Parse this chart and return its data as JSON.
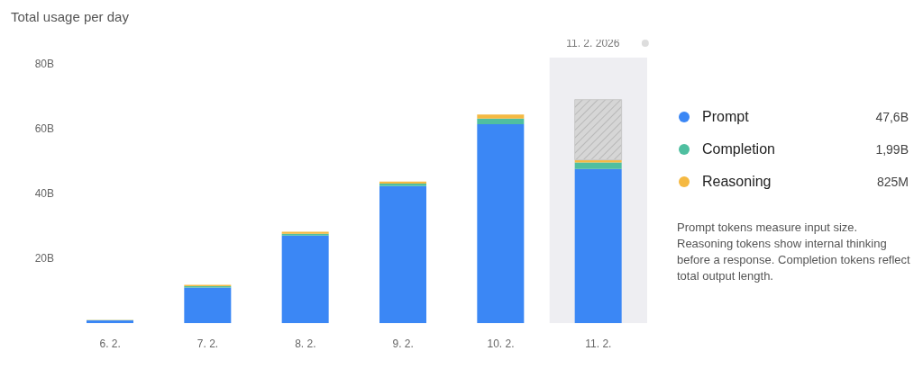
{
  "chart_data": {
    "type": "bar",
    "title": "Total usage per day",
    "stacked": true,
    "categories": [
      "6. 2.",
      "7. 2.",
      "8. 2.",
      "9. 2.",
      "10. 2.",
      "11. 2."
    ],
    "series": [
      {
        "name": "Prompt",
        "color": "#3b87f5",
        "values": [
          0.8,
          11.0,
          27.0,
          42.3,
          61.4,
          47.6
        ]
      },
      {
        "name": "Completion",
        "color": "#4fbfa0",
        "values": [
          0.1,
          0.4,
          0.6,
          0.8,
          1.8,
          1.99
        ]
      },
      {
        "name": "Reasoning",
        "color": "#f5b942",
        "values": [
          0.1,
          0.4,
          0.6,
          0.6,
          1.2,
          0.825
        ]
      },
      {
        "color": "#c8c8c8",
        "values": [
          null,
          null,
          null,
          null,
          null,
          18.6
        ]
      }
    ],
    "ylim": [
      0,
      82
    ],
    "yticks": [
      {
        "value": 20,
        "label": "20B"
      },
      {
        "value": 40,
        "label": "40B"
      },
      {
        "value": 60,
        "label": "60B"
      },
      {
        "value": 80,
        "label": "80B"
      }
    ],
    "bands": [
      {
        "axis": "x",
        "from": "11. 2.",
        "to": "11. 2.",
        "label": "11. 2. 2026",
        "color": "#eeeef2"
      }
    ],
    "legend": "right",
    "annotations": [
      "47,6B",
      "1,99B",
      "825M",
      "Prompt tokens measure input size. Reasoning tokens show internal thinking before a response. Completion tokens reflect total output length."
    ]
  }
}
